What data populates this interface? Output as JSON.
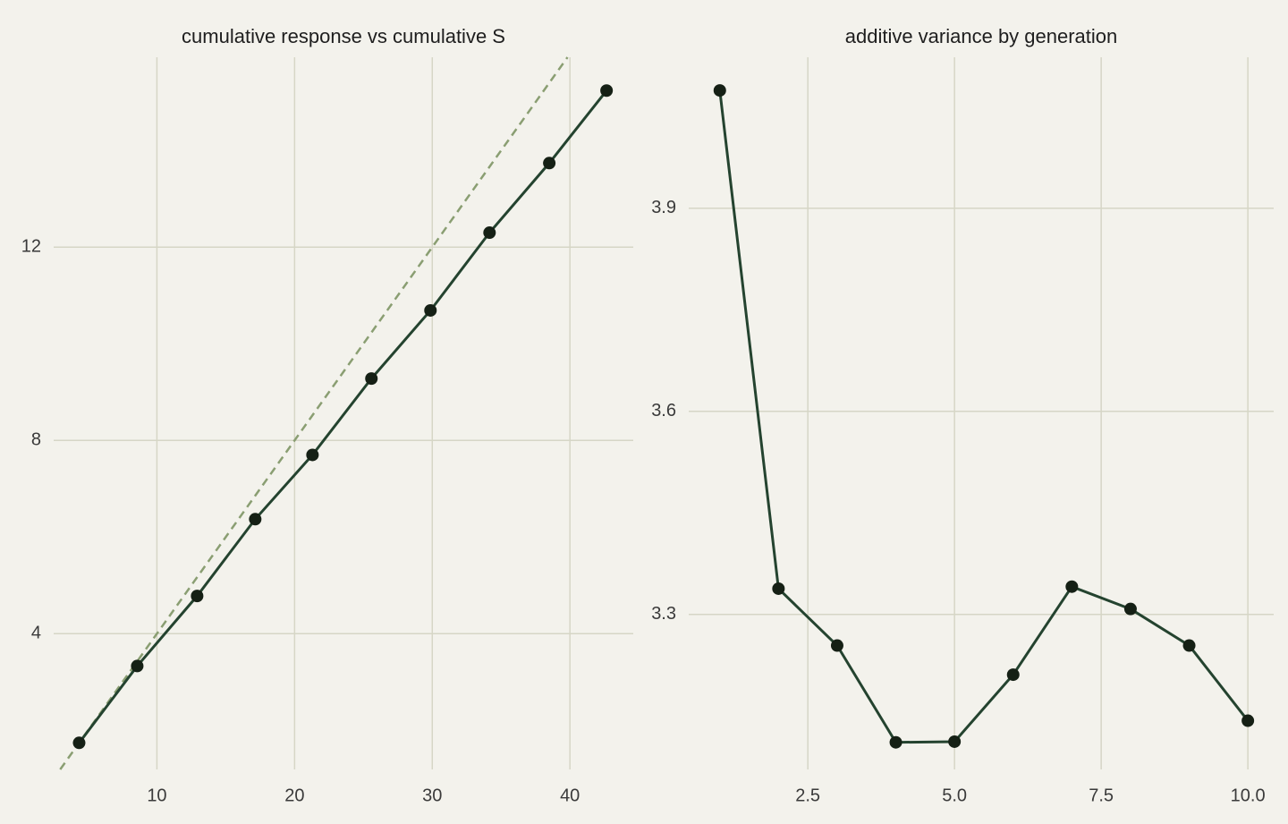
{
  "chart_data": [
    {
      "type": "line",
      "title": "cumulative response vs cumulative S",
      "x": [
        4.35,
        8.57,
        12.92,
        17.14,
        21.3,
        25.58,
        29.87,
        34.16,
        38.5,
        42.66
      ],
      "values": [
        1.74,
        3.33,
        4.78,
        6.37,
        7.7,
        9.28,
        10.69,
        12.3,
        13.74,
        15.24
      ],
      "color": "#24432f",
      "reference_line": {
        "slope": 0.4,
        "color": "#8a9e72",
        "dashed": true
      },
      "xlim": [
        2.5,
        44.6
      ],
      "ylim": [
        1.19,
        15.93
      ],
      "xticks": [
        10,
        20,
        30,
        40
      ],
      "yticks": [
        4,
        8,
        12
      ],
      "grid": true
    },
    {
      "type": "line",
      "title": "additive variance by generation",
      "x": [
        1,
        2,
        3,
        4,
        5,
        6,
        7,
        8,
        9,
        10
      ],
      "values": [
        4.074,
        3.338,
        3.254,
        3.111,
        3.112,
        3.211,
        3.341,
        3.308,
        3.254,
        3.143
      ],
      "color": "#24432f",
      "xlim": [
        0.47,
        10.44
      ],
      "ylim": [
        3.071,
        4.123
      ],
      "xticks": [
        2.5,
        {
          "value": 5,
          "label": "5.0"
        },
        7.5,
        {
          "value": 10,
          "label": "10.0"
        }
      ],
      "yticks": [
        3.3,
        3.6,
        3.9
      ],
      "grid": true
    }
  ]
}
